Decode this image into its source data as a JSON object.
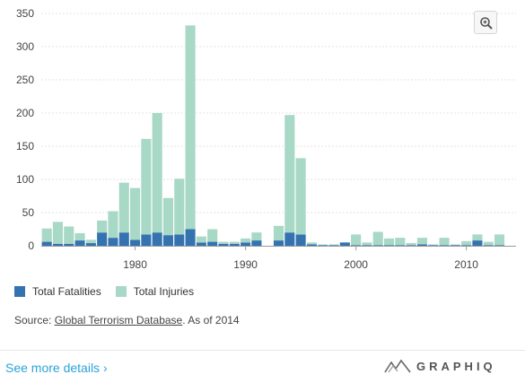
{
  "chart_data": {
    "type": "bar",
    "stacked": true,
    "x_ticks": [
      1980,
      1990,
      2000,
      2010
    ],
    "y_ticks": [
      0,
      50,
      100,
      150,
      200,
      250,
      300,
      350
    ],
    "ylim": [
      0,
      350
    ],
    "xlim": [
      1971.5,
      2014.5
    ],
    "grid": true,
    "series": [
      {
        "name": "Total Fatalities",
        "color": "#3473b0",
        "points": [
          [
            1972,
            6
          ],
          [
            1973,
            3
          ],
          [
            1974,
            3
          ],
          [
            1975,
            8
          ],
          [
            1976,
            4
          ],
          [
            1977,
            20
          ],
          [
            1978,
            12
          ],
          [
            1979,
            20
          ],
          [
            1980,
            9
          ],
          [
            1981,
            17
          ],
          [
            1982,
            20
          ],
          [
            1983,
            16
          ],
          [
            1984,
            17
          ],
          [
            1985,
            25
          ],
          [
            1986,
            5
          ],
          [
            1987,
            6
          ],
          [
            1988,
            3
          ],
          [
            1989,
            3
          ],
          [
            1990,
            5
          ],
          [
            1991,
            8
          ],
          [
            1992,
            0
          ],
          [
            1993,
            8
          ],
          [
            1994,
            20
          ],
          [
            1995,
            17
          ],
          [
            1996,
            2
          ],
          [
            1997,
            1
          ],
          [
            1998,
            1
          ],
          [
            1999,
            5
          ],
          [
            2000,
            1
          ],
          [
            2001,
            1
          ],
          [
            2002,
            1
          ],
          [
            2003,
            1
          ],
          [
            2004,
            1
          ],
          [
            2005,
            1
          ],
          [
            2006,
            2
          ],
          [
            2007,
            1
          ],
          [
            2008,
            1
          ],
          [
            2009,
            1
          ],
          [
            2010,
            1
          ],
          [
            2011,
            8
          ],
          [
            2012,
            1
          ],
          [
            2013,
            1
          ]
        ]
      },
      {
        "name": "Total Injuries",
        "color": "#a8d8c6",
        "points": [
          [
            1972,
            20
          ],
          [
            1973,
            33
          ],
          [
            1974,
            26
          ],
          [
            1975,
            11
          ],
          [
            1976,
            5
          ],
          [
            1977,
            18
          ],
          [
            1978,
            40
          ],
          [
            1979,
            75
          ],
          [
            1980,
            78
          ],
          [
            1981,
            144
          ],
          [
            1982,
            180
          ],
          [
            1983,
            56
          ],
          [
            1984,
            84
          ],
          [
            1985,
            307
          ],
          [
            1986,
            9
          ],
          [
            1987,
            19
          ],
          [
            1988,
            3
          ],
          [
            1989,
            3
          ],
          [
            1990,
            6
          ],
          [
            1991,
            12
          ],
          [
            1992,
            0
          ],
          [
            1993,
            22
          ],
          [
            1994,
            177
          ],
          [
            1995,
            115
          ],
          [
            1996,
            3
          ],
          [
            1997,
            1
          ],
          [
            1998,
            1
          ],
          [
            1999,
            0
          ],
          [
            2000,
            16
          ],
          [
            2001,
            4
          ],
          [
            2002,
            20
          ],
          [
            2003,
            10
          ],
          [
            2004,
            11
          ],
          [
            2005,
            3
          ],
          [
            2006,
            10
          ],
          [
            2007,
            1
          ],
          [
            2008,
            11
          ],
          [
            2009,
            1
          ],
          [
            2010,
            6
          ],
          [
            2011,
            9
          ],
          [
            2012,
            5
          ],
          [
            2013,
            16
          ]
        ]
      }
    ]
  },
  "legend": {
    "fatalities_label": "Total Fatalities",
    "injuries_label": "Total Injuries"
  },
  "source": {
    "prefix": "Source: ",
    "link_text": "Global Terrorism Database",
    "suffix": ". As of 2014"
  },
  "footer": {
    "more_details": "See more details ›",
    "brand": "GRAPHIQ"
  },
  "icons": {
    "zoom": "zoom-in-icon",
    "brand_logo": "graphiq-logo-icon"
  }
}
